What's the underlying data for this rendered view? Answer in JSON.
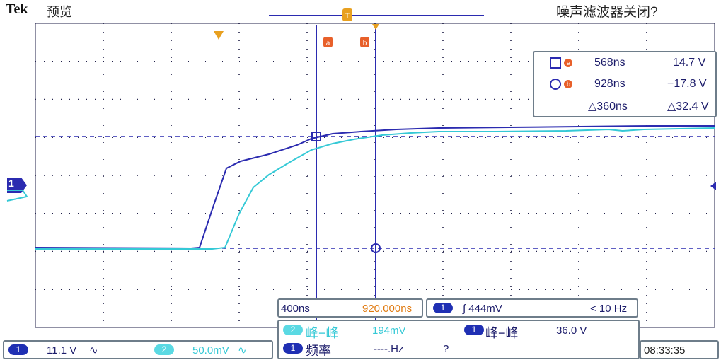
{
  "header": {
    "brand": "Tek",
    "mode": "预览",
    "noise_filter": "噪声滤波器关闭?"
  },
  "colors": {
    "ch1": "#2b2bb0",
    "ch2": "#35c9d6",
    "grid": "#1a1a50",
    "cursor": "#2b2bb0",
    "marker": "#e8602a",
    "trigger": "#e8a020"
  },
  "markers": {
    "a": "a",
    "b": "b"
  },
  "cursor_readout": {
    "row_a": {
      "time": "568ns",
      "value": "14.7 V"
    },
    "row_b": {
      "time": "928ns",
      "value": "−17.8 V"
    },
    "delta": {
      "time": "△360ns",
      "value": "△32.4 V"
    }
  },
  "timebase": {
    "scale": "400ns",
    "position": "920.000ns"
  },
  "trigger": {
    "channel": "1",
    "level": "∫ 444mV",
    "freq": "< 10 Hz"
  },
  "measurements": {
    "m1": {
      "channel": "2",
      "label": "峰−峰",
      "value": "194mV"
    },
    "m2": {
      "channel": "1",
      "label": "峰−峰",
      "value": "36.0 V"
    },
    "m3": {
      "channel": "1",
      "label": "频率",
      "value": "----.Hz",
      "flag": "?"
    }
  },
  "channels": {
    "ch1": {
      "id": "1",
      "scale": "11.1 V",
      "coupling": "∿"
    },
    "ch2": {
      "id": "2",
      "scale": "50.0mV",
      "coupling": "∿"
    }
  },
  "clock": "08:33:35",
  "ground_marker": "1"
}
